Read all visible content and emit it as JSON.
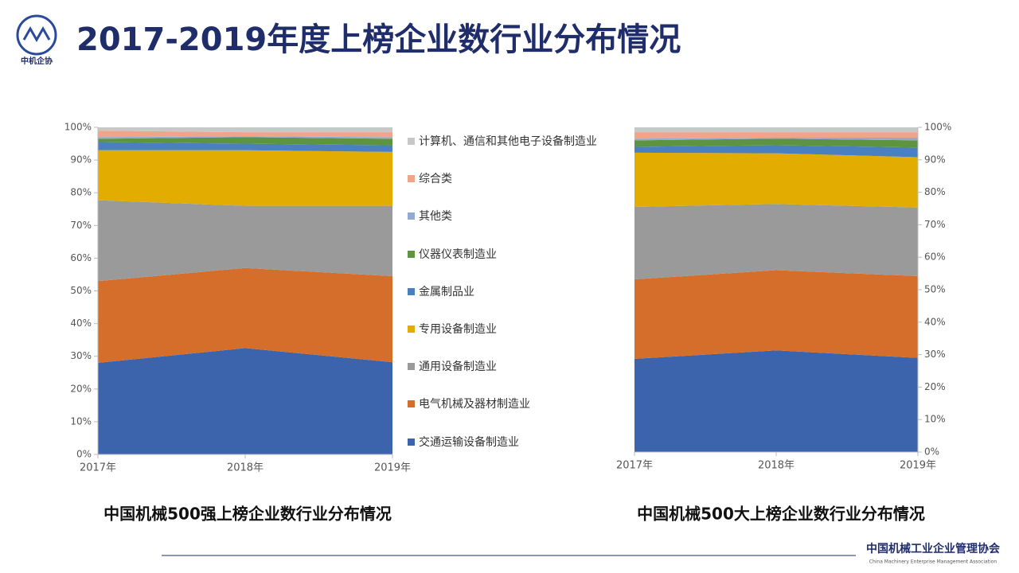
{
  "header": {
    "title": "2017-2019年度上榜企业数行业分布情况",
    "logo_text": "中机企协"
  },
  "footer": {
    "org_name": "中国机械工业企业管理协会",
    "org_name_en": "China Machinery Enterprise Management Association"
  },
  "chart_data": [
    {
      "type": "area",
      "stacked": true,
      "title": "中国机械500强上榜企业数行业分布情况",
      "y_axis_side": "left",
      "categories": [
        "2017年",
        "2018年",
        "2019年"
      ],
      "ylim": [
        0,
        100
      ],
      "yticks": [
        {
          "value": 0,
          "label": "0%"
        },
        {
          "value": 10,
          "label": "10%"
        },
        {
          "value": 20,
          "label": "20%"
        },
        {
          "value": 30,
          "label": "30%"
        },
        {
          "value": 40,
          "label": "40%"
        },
        {
          "value": 50,
          "label": "50%"
        },
        {
          "value": 60,
          "label": "60%"
        },
        {
          "value": 70,
          "label": "70%"
        },
        {
          "value": 80,
          "label": "80%"
        },
        {
          "value": 90,
          "label": "90%"
        },
        {
          "value": 100,
          "label": "100%"
        }
      ],
      "series": [
        {
          "name": "交通运输设备制造业",
          "color": "#3b64ad",
          "values": [
            28,
            32.5,
            28.2
          ]
        },
        {
          "name": "电气机械及器材制造业",
          "color": "#d56e2a",
          "values": [
            25,
            24.5,
            26.3
          ]
        },
        {
          "name": "通用设备制造业",
          "color": "#9a9a9a",
          "values": [
            24.7,
            19,
            21.5
          ]
        },
        {
          "name": "专用设备制造业",
          "color": "#e3ac00",
          "values": [
            15.3,
            17,
            16.5
          ]
        },
        {
          "name": "金属制品业",
          "color": "#4a7fc0",
          "values": [
            2.5,
            2,
            2
          ]
        },
        {
          "name": "仪器仪表制造业",
          "color": "#5d9440",
          "values": [
            1,
            2,
            2
          ]
        },
        {
          "name": "其他类",
          "color": "#92a9d6",
          "values": [
            0.5,
            0.3,
            0.5
          ]
        },
        {
          "name": "综合类",
          "color": "#f0a48a",
          "values": [
            2,
            1.2,
            1.5
          ]
        },
        {
          "name": "计算机、通信和其他电子设备制造业",
          "color": "#c8c8c8",
          "values": [
            1,
            1.5,
            1.5
          ]
        }
      ]
    },
    {
      "type": "area",
      "stacked": true,
      "title": "中国机械500大上榜企业数行业分布情况",
      "y_axis_side": "right",
      "categories": [
        "2017年",
        "2018年",
        "2019年"
      ],
      "ylim": [
        0,
        100
      ],
      "yticks": [
        {
          "value": 0,
          "label": "0%"
        },
        {
          "value": 10,
          "label": "10%"
        },
        {
          "value": 20,
          "label": "20%"
        },
        {
          "value": 30,
          "label": "30%"
        },
        {
          "value": 40,
          "label": "40%"
        },
        {
          "value": 50,
          "label": "50%"
        },
        {
          "value": 60,
          "label": "60%"
        },
        {
          "value": 70,
          "label": "70%"
        },
        {
          "value": 80,
          "label": "80%"
        },
        {
          "value": 90,
          "label": "90%"
        },
        {
          "value": 100,
          "label": "100%"
        }
      ],
      "series": [
        {
          "color": "#3b64ad",
          "values": [
            28.7,
            31.3,
            29
          ]
        },
        {
          "color": "#d56e2a",
          "values": [
            24.5,
            24.7,
            25.2
          ]
        },
        {
          "color": "#9a9a9a",
          "values": [
            22.3,
            20.4,
            21.1
          ]
        },
        {
          "color": "#e3ac00",
          "values": [
            16.7,
            15.6,
            15.5
          ]
        },
        {
          "color": "#4a7fc0",
          "values": [
            1.8,
            2.5,
            3
          ]
        },
        {
          "color": "#5d9440",
          "values": [
            2,
            2,
            2.2
          ]
        },
        {
          "color": "#92a9d6",
          "values": [
            0.5,
            0.3,
            0.8
          ]
        },
        {
          "color": "#f0a48a",
          "values": [
            2,
            1.7,
            1.7
          ]
        },
        {
          "color": "#c8c8c8",
          "values": [
            1.5,
            1.5,
            1.5
          ]
        }
      ]
    }
  ]
}
